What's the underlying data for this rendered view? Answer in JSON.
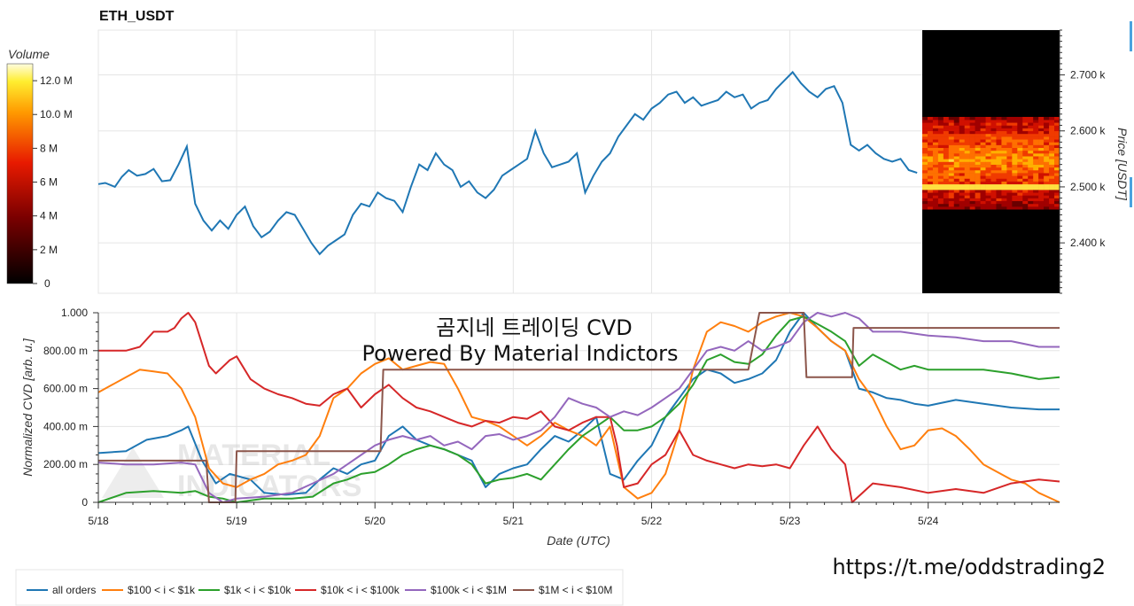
{
  "chart_data": [
    {
      "type": "line",
      "title": "ETH_USDT",
      "ylabel": "Price [USDT]",
      "ylim": [
        2310,
        2780
      ],
      "yticks": [
        "2.400 k",
        "2.500 k",
        "2.600 k",
        "2.700 k"
      ],
      "ytick_values": [
        2400,
        2500,
        2600,
        2700
      ],
      "x_days_start": "5/18",
      "series": [
        {
          "name": "price",
          "x": [
            0,
            0.05,
            0.12,
            0.17,
            0.22,
            0.28,
            0.34,
            0.4,
            0.46,
            0.52,
            0.58,
            0.64,
            0.7,
            0.76,
            0.82,
            0.88,
            0.94,
            1.0,
            1.06,
            1.12,
            1.18,
            1.24,
            1.3,
            1.36,
            1.42,
            1.48,
            1.54,
            1.6,
            1.66,
            1.72,
            1.78,
            1.84,
            1.9,
            1.96,
            2.02,
            2.08,
            2.14,
            2.2,
            2.26,
            2.32,
            2.38,
            2.44,
            2.5,
            2.56,
            2.62,
            2.68,
            2.74,
            2.8,
            2.86,
            2.92,
            2.98,
            3.04,
            3.1,
            3.16,
            3.22,
            3.28,
            3.34,
            3.4,
            3.46,
            3.52,
            3.58,
            3.64,
            3.7,
            3.76,
            3.82,
            3.88,
            3.94,
            4.0,
            4.06,
            4.12,
            4.18,
            4.24,
            4.3,
            4.36,
            4.42,
            4.48,
            4.54,
            4.6,
            4.66,
            4.72,
            4.78,
            4.84,
            4.9,
            4.96,
            5.02,
            5.08,
            5.14,
            5.2,
            5.26,
            5.32,
            5.38,
            5.44,
            5.5,
            5.56,
            5.62,
            5.68,
            5.74,
            5.8,
            5.86,
            5.92
          ],
          "y": [
            2505,
            2507,
            2500,
            2518,
            2530,
            2520,
            2523,
            2532,
            2510,
            2512,
            2540,
            2572,
            2470,
            2440,
            2422,
            2440,
            2425,
            2450,
            2465,
            2430,
            2410,
            2420,
            2440,
            2455,
            2450,
            2425,
            2400,
            2380,
            2395,
            2405,
            2415,
            2450,
            2470,
            2465,
            2490,
            2480,
            2475,
            2455,
            2500,
            2540,
            2530,
            2560,
            2540,
            2530,
            2500,
            2510,
            2490,
            2480,
            2495,
            2520,
            2530,
            2540,
            2550,
            2600,
            2560,
            2535,
            2540,
            2545,
            2560,
            2490,
            2520,
            2545,
            2560,
            2590,
            2610,
            2630,
            2620,
            2640,
            2650,
            2665,
            2670,
            2650,
            2660,
            2645,
            2650,
            2655,
            2670,
            2660,
            2665,
            2640,
            2650,
            2655,
            2675,
            2690,
            2705,
            2685,
            2670,
            2660,
            2675,
            2680,
            2650,
            2575,
            2565,
            2575,
            2560,
            2550,
            2545,
            2550,
            2530,
            2525
          ]
        }
      ],
      "volume_scale_label": "Volume",
      "volume_ticks": [
        "0",
        "2 M",
        "4 M",
        "6 M",
        "8 M",
        "10.0 M",
        "12.0 M"
      ],
      "volume_tick_values": [
        0,
        2,
        4,
        6,
        8,
        10,
        12
      ]
    },
    {
      "type": "line",
      "xlabel": "Date (UTC)",
      "ylabel": "Normalized CVD [arb. u.]",
      "xticks": [
        "5/18",
        "5/19",
        "5/20",
        "5/21",
        "5/22",
        "5/23",
        "5/24"
      ],
      "xtick_values": [
        0,
        1,
        2,
        3,
        4,
        5,
        6
      ],
      "xlim": [
        0,
        6.95
      ],
      "ylim": [
        0,
        1.0
      ],
      "yticks": [
        "0",
        "200.00 m",
        "400.00 m",
        "600.00 m",
        "800.00 m",
        "1.000"
      ],
      "ytick_values": [
        0,
        0.2,
        0.4,
        0.6,
        0.8,
        1.0
      ],
      "series": [
        {
          "name": "all orders",
          "color": "#1f77b4",
          "x": [
            0,
            0.2,
            0.35,
            0.5,
            0.6,
            0.65,
            0.75,
            0.85,
            0.95,
            1.1,
            1.2,
            1.35,
            1.5,
            1.6,
            1.7,
            1.8,
            1.9,
            2.0,
            2.1,
            2.2,
            2.3,
            2.4,
            2.5,
            2.6,
            2.7,
            2.8,
            2.9,
            3.0,
            3.1,
            3.2,
            3.3,
            3.4,
            3.5,
            3.6,
            3.7,
            3.8,
            3.9,
            4.0,
            4.1,
            4.2,
            4.3,
            4.4,
            4.5,
            4.6,
            4.7,
            4.8,
            4.9,
            5.0,
            5.1,
            5.2,
            5.3,
            5.4,
            5.5,
            5.6,
            5.7,
            5.8,
            5.9,
            6.0,
            6.2,
            6.4,
            6.6,
            6.8,
            6.95
          ],
          "y": [
            0.26,
            0.27,
            0.33,
            0.35,
            0.38,
            0.4,
            0.22,
            0.1,
            0.15,
            0.12,
            0.05,
            0.04,
            0.05,
            0.12,
            0.18,
            0.15,
            0.2,
            0.22,
            0.35,
            0.4,
            0.33,
            0.3,
            0.28,
            0.25,
            0.22,
            0.08,
            0.15,
            0.18,
            0.2,
            0.28,
            0.35,
            0.32,
            0.38,
            0.45,
            0.15,
            0.12,
            0.22,
            0.3,
            0.45,
            0.55,
            0.65,
            0.7,
            0.68,
            0.63,
            0.65,
            0.68,
            0.75,
            0.9,
            1.0,
            0.92,
            0.85,
            0.8,
            0.6,
            0.58,
            0.55,
            0.54,
            0.52,
            0.51,
            0.54,
            0.52,
            0.5,
            0.49,
            0.49
          ]
        },
        {
          "name": "$100 < i < $1k",
          "color": "#ff7f0e",
          "x": [
            0,
            0.1,
            0.2,
            0.3,
            0.4,
            0.5,
            0.6,
            0.7,
            0.8,
            0.9,
            1.0,
            1.1,
            1.2,
            1.3,
            1.4,
            1.5,
            1.6,
            1.7,
            1.8,
            1.9,
            2.0,
            2.1,
            2.2,
            2.3,
            2.4,
            2.5,
            2.6,
            2.7,
            2.8,
            2.9,
            3.0,
            3.1,
            3.2,
            3.3,
            3.4,
            3.5,
            3.6,
            3.7,
            3.8,
            3.9,
            4.0,
            4.1,
            4.2,
            4.3,
            4.4,
            4.5,
            4.6,
            4.7,
            4.8,
            4.9,
            5.0,
            5.1,
            5.2,
            5.3,
            5.4,
            5.5,
            5.6,
            5.7,
            5.8,
            5.9,
            6.0,
            6.1,
            6.2,
            6.3,
            6.4,
            6.5,
            6.6,
            6.7,
            6.8,
            6.95
          ],
          "y": [
            0.58,
            0.62,
            0.66,
            0.7,
            0.69,
            0.68,
            0.6,
            0.45,
            0.18,
            0.1,
            0.08,
            0.12,
            0.15,
            0.2,
            0.22,
            0.25,
            0.35,
            0.55,
            0.6,
            0.68,
            0.73,
            0.76,
            0.7,
            0.72,
            0.74,
            0.73,
            0.6,
            0.45,
            0.43,
            0.4,
            0.35,
            0.3,
            0.35,
            0.42,
            0.38,
            0.35,
            0.3,
            0.4,
            0.08,
            0.02,
            0.05,
            0.15,
            0.38,
            0.7,
            0.9,
            0.95,
            0.93,
            0.9,
            0.95,
            0.98,
            1.0,
            0.98,
            0.92,
            0.85,
            0.8,
            0.65,
            0.55,
            0.4,
            0.28,
            0.3,
            0.38,
            0.39,
            0.35,
            0.28,
            0.2,
            0.16,
            0.12,
            0.1,
            0.05,
            0.0
          ]
        },
        {
          "name": "$1k < i < $10k",
          "color": "#2ca02c",
          "x": [
            0,
            0.2,
            0.4,
            0.6,
            0.7,
            0.8,
            0.9,
            1.0,
            1.2,
            1.4,
            1.55,
            1.7,
            1.8,
            1.9,
            2.0,
            2.1,
            2.2,
            2.3,
            2.4,
            2.5,
            2.6,
            2.7,
            2.8,
            2.9,
            3.0,
            3.1,
            3.2,
            3.3,
            3.4,
            3.5,
            3.6,
            3.7,
            3.8,
            3.9,
            4.0,
            4.1,
            4.2,
            4.3,
            4.4,
            4.5,
            4.6,
            4.7,
            4.8,
            4.9,
            5.0,
            5.1,
            5.2,
            5.3,
            5.4,
            5.5,
            5.6,
            5.7,
            5.8,
            5.9,
            6.0,
            6.2,
            6.4,
            6.6,
            6.8,
            6.95
          ],
          "y": [
            0.0,
            0.05,
            0.06,
            0.05,
            0.06,
            0.03,
            0.02,
            0.0,
            0.02,
            0.02,
            0.03,
            0.1,
            0.12,
            0.15,
            0.16,
            0.2,
            0.25,
            0.28,
            0.3,
            0.28,
            0.25,
            0.2,
            0.1,
            0.12,
            0.13,
            0.15,
            0.12,
            0.2,
            0.28,
            0.35,
            0.4,
            0.45,
            0.38,
            0.38,
            0.4,
            0.45,
            0.52,
            0.62,
            0.75,
            0.78,
            0.74,
            0.73,
            0.78,
            0.88,
            0.96,
            0.98,
            0.94,
            0.9,
            0.85,
            0.72,
            0.78,
            0.74,
            0.7,
            0.72,
            0.7,
            0.7,
            0.7,
            0.68,
            0.65,
            0.66
          ]
        },
        {
          "name": "$10k < i < $100k",
          "color": "#d62728",
          "x": [
            0,
            0.2,
            0.3,
            0.4,
            0.5,
            0.55,
            0.6,
            0.65,
            0.7,
            0.8,
            0.85,
            0.95,
            1.0,
            1.1,
            1.2,
            1.3,
            1.4,
            1.5,
            1.6,
            1.7,
            1.8,
            1.9,
            2.0,
            2.1,
            2.2,
            2.3,
            2.4,
            2.5,
            2.6,
            2.7,
            2.8,
            2.9,
            3.0,
            3.1,
            3.2,
            3.3,
            3.4,
            3.5,
            3.6,
            3.7,
            3.75,
            3.8,
            3.9,
            4.0,
            4.1,
            4.2,
            4.3,
            4.4,
            4.5,
            4.6,
            4.7,
            4.8,
            4.9,
            5.0,
            5.1,
            5.2,
            5.3,
            5.4,
            5.45,
            5.6,
            5.8,
            6.0,
            6.2,
            6.4,
            6.6,
            6.8,
            6.95
          ],
          "y": [
            0.8,
            0.8,
            0.82,
            0.9,
            0.9,
            0.92,
            0.97,
            1.0,
            0.95,
            0.72,
            0.68,
            0.75,
            0.77,
            0.65,
            0.6,
            0.57,
            0.55,
            0.52,
            0.51,
            0.57,
            0.6,
            0.5,
            0.57,
            0.62,
            0.55,
            0.5,
            0.48,
            0.45,
            0.42,
            0.4,
            0.43,
            0.42,
            0.45,
            0.44,
            0.48,
            0.4,
            0.38,
            0.42,
            0.45,
            0.45,
            0.3,
            0.08,
            0.1,
            0.2,
            0.25,
            0.38,
            0.25,
            0.22,
            0.2,
            0.18,
            0.2,
            0.19,
            0.2,
            0.18,
            0.3,
            0.4,
            0.28,
            0.2,
            0.0,
            0.1,
            0.08,
            0.05,
            0.07,
            0.05,
            0.1,
            0.12,
            0.11
          ]
        },
        {
          "name": "$100k < i < $1M",
          "color": "#9467bd",
          "x": [
            0,
            0.2,
            0.4,
            0.6,
            0.7,
            0.8,
            0.9,
            1.0,
            1.2,
            1.4,
            1.55,
            1.7,
            1.8,
            1.9,
            2.0,
            2.1,
            2.2,
            2.3,
            2.4,
            2.5,
            2.6,
            2.7,
            2.8,
            2.9,
            3.0,
            3.1,
            3.2,
            3.3,
            3.4,
            3.5,
            3.6,
            3.7,
            3.8,
            3.9,
            4.0,
            4.1,
            4.2,
            4.3,
            4.4,
            4.5,
            4.6,
            4.7,
            4.8,
            4.9,
            5.0,
            5.1,
            5.2,
            5.3,
            5.4,
            5.5,
            5.6,
            5.8,
            6.0,
            6.2,
            6.4,
            6.6,
            6.8,
            6.95
          ],
          "y": [
            0.21,
            0.2,
            0.2,
            0.21,
            0.2,
            0.05,
            0.0,
            0.02,
            0.03,
            0.05,
            0.1,
            0.15,
            0.2,
            0.25,
            0.3,
            0.33,
            0.35,
            0.33,
            0.35,
            0.3,
            0.32,
            0.28,
            0.35,
            0.36,
            0.33,
            0.35,
            0.38,
            0.45,
            0.55,
            0.52,
            0.5,
            0.45,
            0.48,
            0.46,
            0.5,
            0.55,
            0.6,
            0.7,
            0.8,
            0.82,
            0.8,
            0.85,
            0.8,
            0.82,
            0.85,
            0.95,
            1.0,
            0.98,
            1.0,
            0.97,
            0.9,
            0.9,
            0.88,
            0.87,
            0.85,
            0.85,
            0.82,
            0.82
          ]
        },
        {
          "name": "$1M < i < $10M",
          "color": "#8c564b",
          "x": [
            0,
            0.78,
            0.8,
            0.82,
            0.99,
            1.0,
            2.02,
            2.04,
            2.06,
            2.08,
            4.7,
            4.78,
            5.02,
            5.04,
            5.1,
            5.12,
            5.45,
            5.46,
            6.95
          ],
          "y": [
            0.22,
            0.22,
            0.0,
            0.0,
            0.0,
            0.27,
            0.27,
            0.27,
            0.7,
            0.7,
            0.7,
            1.0,
            1.0,
            1.0,
            1.0,
            0.66,
            0.66,
            0.92,
            0.92
          ]
        }
      ]
    }
  ],
  "overlay_text": {
    "line1": "곰지네 트레이딩 CVD",
    "line2": "Powered By Material Indictors"
  },
  "watermark": {
    "line1": "MATERIAL",
    "line2": "INDICATORS"
  },
  "link": "https://t.me/oddstrading2"
}
